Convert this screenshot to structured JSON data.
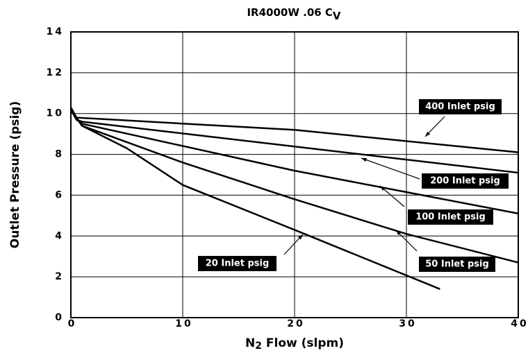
{
  "chart_data": {
    "type": "line",
    "title": "IR4000W .06 C",
    "title_subscript": "V",
    "xlabel": {
      "text": "N",
      "subscript": "2",
      "rest": " Flow (slpm)"
    },
    "ylabel": "Outlet Pressure (psig)",
    "xlim": [
      0,
      40
    ],
    "xticks": [
      0,
      10,
      20,
      30,
      40
    ],
    "ylim": [
      0,
      14
    ],
    "yticks": [
      0,
      2,
      4,
      6,
      8,
      10,
      12,
      14
    ],
    "grid": true,
    "series": [
      {
        "name": "400 Inlet psig",
        "color": "#000000",
        "x": [
          0,
          0.5,
          20,
          40
        ],
        "values": [
          10.3,
          9.8,
          9.2,
          8.1
        ]
      },
      {
        "name": "200 Inlet psig",
        "color": "#000000",
        "x": [
          0,
          0.5,
          1,
          40
        ],
        "values": [
          10.2,
          9.7,
          9.6,
          7.1
        ]
      },
      {
        "name": "100 Inlet psig",
        "color": "#000000",
        "x": [
          0,
          0.5,
          1,
          20,
          40
        ],
        "values": [
          10.2,
          9.7,
          9.5,
          7.2,
          5.1
        ]
      },
      {
        "name": "50 Inlet psig",
        "color": "#000000",
        "x": [
          0,
          1,
          10,
          20,
          30,
          40
        ],
        "values": [
          10.2,
          9.4,
          7.6,
          5.8,
          4.1,
          2.7
        ]
      },
      {
        "name": "20 Inlet psig",
        "color": "#000000",
        "x": [
          0,
          1,
          5,
          10,
          20,
          33
        ],
        "values": [
          10.2,
          9.4,
          8.3,
          6.5,
          4.3,
          1.4
        ]
      }
    ]
  }
}
